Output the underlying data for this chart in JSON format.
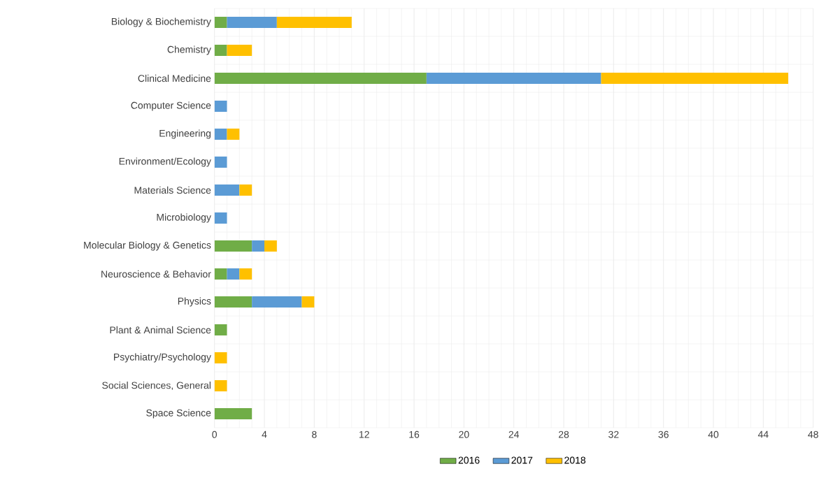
{
  "chart_data": {
    "type": "bar",
    "orientation": "horizontal",
    "stacked": true,
    "categories": [
      "Biology & Biochemistry",
      "Chemistry",
      "Clinical Medicine",
      "Computer Science",
      "Engineering",
      "Environment/Ecology",
      "Materials Science",
      "Microbiology",
      "Molecular Biology & Genetics",
      "Neuroscience & Behavior",
      "Physics",
      "Plant & Animal Science",
      "Psychiatry/Psychology",
      "Social Sciences, General",
      "Space Science"
    ],
    "series": [
      {
        "name": "2016",
        "color": "#70ad47",
        "values": [
          1,
          1,
          17,
          0,
          0,
          0,
          0,
          0,
          3,
          1,
          3,
          1,
          0,
          0,
          3
        ]
      },
      {
        "name": "2017",
        "color": "#5b9bd5",
        "values": [
          4,
          0,
          14,
          1,
          1,
          1,
          2,
          1,
          1,
          1,
          4,
          0,
          0,
          0,
          0
        ]
      },
      {
        "name": "2018",
        "color": "#ffc000",
        "values": [
          6,
          2,
          15,
          0,
          1,
          0,
          1,
          0,
          1,
          1,
          1,
          0,
          1,
          1,
          0
        ]
      }
    ],
    "xlim": [
      0,
      48
    ],
    "xticks": [
      0,
      4,
      8,
      12,
      16,
      20,
      24,
      28,
      32,
      36,
      40,
      44,
      48
    ],
    "grid": true,
    "legend": "bottom"
  }
}
